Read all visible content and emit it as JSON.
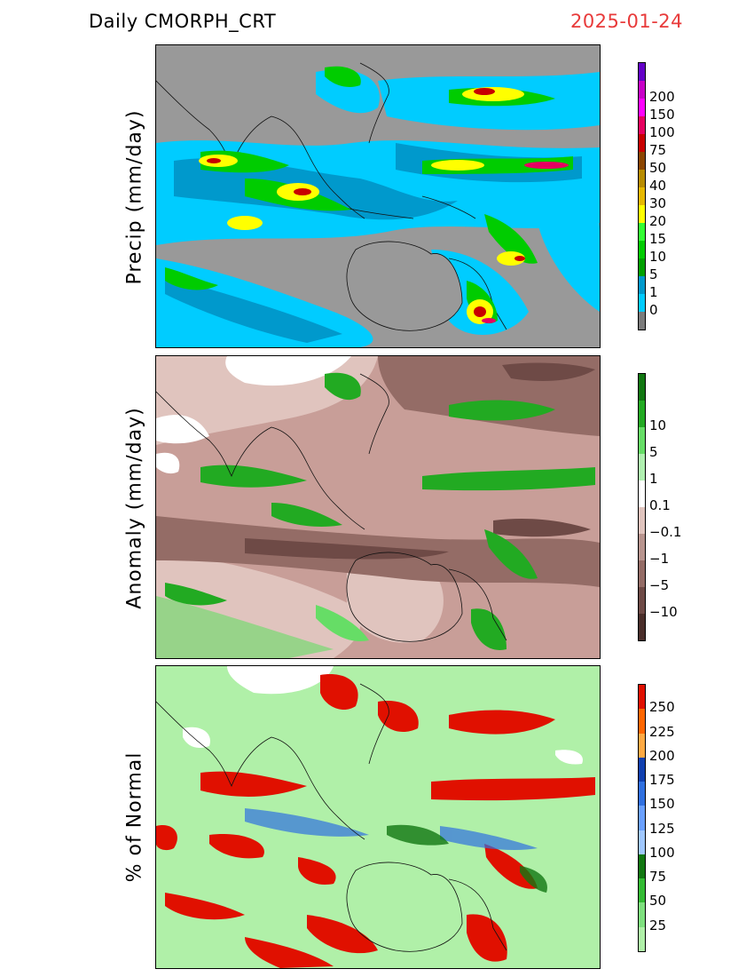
{
  "header": {
    "title": "Daily  CMORPH_CRT",
    "date": "2025-01-24"
  },
  "panels": [
    {
      "id": "precip",
      "ylabel": "Precip  (mm/day)",
      "background": "#999999",
      "colorbar": {
        "colors": [
          "#7b7b7b",
          "#00ccff",
          "#0099cc",
          "#00a000",
          "#00cc00",
          "#33ff33",
          "#ffff00",
          "#e6b800",
          "#b88c00",
          "#8b4500",
          "#c80000",
          "#e60060",
          "#ff00ff",
          "#c800c8",
          "#6400c8"
        ],
        "labels": [
          "0",
          "1",
          "5",
          "10",
          "15",
          "20",
          "30",
          "40",
          "50",
          "75",
          "100",
          "150",
          "200"
        ]
      }
    },
    {
      "id": "anomaly",
      "ylabel": "Anomaly  (mm/day)",
      "background": "#c89e98",
      "colorbar": {
        "colors": [
          "#4a2e2a",
          "#6e4a46",
          "#946c66",
          "#b8948e",
          "#e0c4be",
          "#ffffff",
          "#b0f0b0",
          "#66dd66",
          "#22aa22",
          "#117711"
        ],
        "labels": [
          "−10",
          "−5",
          "−1",
          "−0.1",
          "0.1",
          "1",
          "5",
          "10"
        ]
      }
    },
    {
      "id": "percent",
      "ylabel": "%  of  Normal",
      "background": "#b0f0a8",
      "colorbar": {
        "colors": [
          "#b0f0a8",
          "#7ee07e",
          "#33bb33",
          "#117711",
          "#a0c8ff",
          "#6aa0ff",
          "#3070e0",
          "#1040b0",
          "#ffaa44",
          "#ff6600",
          "#e01000"
        ],
        "labels": [
          "25",
          "50",
          "75",
          "100",
          "125",
          "150",
          "175",
          "200",
          "225",
          "250"
        ]
      }
    }
  ]
}
